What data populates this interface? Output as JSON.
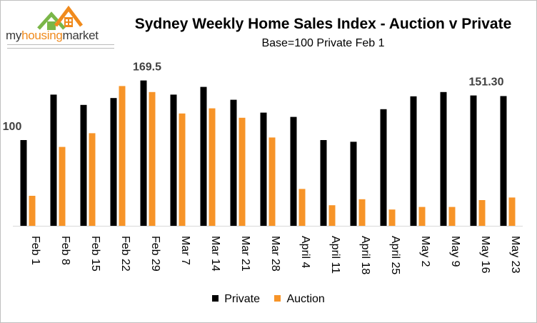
{
  "header": {
    "title": "Sydney Weekly Home Sales Index - Auction v Private",
    "subtitle": "Base=100 Private Feb 1"
  },
  "logo": {
    "part1": "my",
    "part2": "housing",
    "part3": "market",
    "colors": {
      "roof_green": "#7ab648",
      "roof_orange": "#f08a1c"
    }
  },
  "chart_data": {
    "type": "bar",
    "title": "Sydney Weekly Home Sales Index - Auction v Private",
    "subtitle": "Base=100 Private Feb 1",
    "categories": [
      "Feb 1",
      "Feb 8",
      "Feb 15",
      "Feb 22",
      "Feb 29",
      "Mar 7",
      "Mar 14",
      "Mar 21",
      "Mar 28",
      "April 4",
      "April 11",
      "April 18",
      "April 25",
      "May 2",
      "May 9",
      "May 16",
      "May 23"
    ],
    "series": [
      {
        "name": "Private",
        "color": "#000000",
        "values": [
          100,
          153,
          141,
          149,
          169.5,
          153,
          162,
          147,
          132,
          127,
          100,
          98,
          136,
          151,
          156,
          152,
          151.3
        ]
      },
      {
        "name": "Auction",
        "color": "#f79428",
        "values": [
          35,
          92,
          108,
          163,
          156,
          131,
          137,
          126,
          103,
          43,
          24,
          31,
          19,
          22,
          22,
          30,
          33
        ]
      }
    ],
    "annotations": [
      {
        "category": "Feb 1",
        "series": "Private",
        "text": "100"
      },
      {
        "category": "Feb 29",
        "series": "Private",
        "text": "169.5"
      },
      {
        "category": "May 23",
        "series": "Private",
        "text": "151.30"
      }
    ],
    "ylim": [
      0,
      200
    ],
    "grid": false,
    "legend": "bottom"
  }
}
